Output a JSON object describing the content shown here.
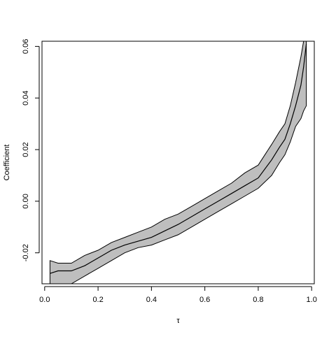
{
  "chart_data": {
    "type": "area",
    "xlabel": "τ",
    "ylabel": "Coefficient",
    "xlim": [
      -0.01,
      1.01
    ],
    "ylim": [
      -0.032,
      0.062
    ],
    "x_ticks": [
      "0.0",
      "0.2",
      "0.4",
      "0.6",
      "0.8",
      "1.0"
    ],
    "y_ticks": [
      "-0.02",
      "0.00",
      "0.02",
      "0.04",
      "0.06"
    ],
    "grid": false,
    "band_color": "#bebebe",
    "line_color": "#000000",
    "series": [
      {
        "role": "estimate",
        "x": [
          0.02,
          0.05,
          0.1,
          0.15,
          0.2,
          0.25,
          0.3,
          0.35,
          0.4,
          0.45,
          0.5,
          0.55,
          0.6,
          0.65,
          0.7,
          0.75,
          0.8,
          0.85,
          0.88,
          0.9,
          0.92,
          0.94,
          0.96,
          0.97,
          0.98
        ],
        "values": [
          -0.028,
          -0.027,
          -0.027,
          -0.025,
          -0.022,
          -0.019,
          -0.017,
          -0.0155,
          -0.014,
          -0.0115,
          -0.009,
          -0.006,
          -0.003,
          0.0,
          0.003,
          0.006,
          0.009,
          0.016,
          0.021,
          0.024,
          0.03,
          0.037,
          0.045,
          0.052,
          0.061
        ]
      },
      {
        "role": "upper",
        "x": [
          0.02,
          0.05,
          0.1,
          0.15,
          0.2,
          0.25,
          0.3,
          0.35,
          0.4,
          0.45,
          0.5,
          0.55,
          0.6,
          0.65,
          0.7,
          0.75,
          0.8,
          0.85,
          0.88,
          0.9,
          0.92,
          0.94,
          0.96,
          0.97,
          0.98
        ],
        "values": [
          -0.023,
          -0.024,
          -0.024,
          -0.021,
          -0.019,
          -0.016,
          -0.014,
          -0.012,
          -0.01,
          -0.007,
          -0.005,
          -0.002,
          0.001,
          0.004,
          0.007,
          0.011,
          0.014,
          0.022,
          0.027,
          0.03,
          0.037,
          0.046,
          0.056,
          0.062,
          0.062
        ]
      },
      {
        "role": "lower",
        "x": [
          0.02,
          0.05,
          0.1,
          0.15,
          0.2,
          0.25,
          0.3,
          0.35,
          0.4,
          0.45,
          0.5,
          0.55,
          0.6,
          0.65,
          0.7,
          0.75,
          0.8,
          0.85,
          0.88,
          0.9,
          0.92,
          0.94,
          0.96,
          0.97,
          0.98
        ],
        "values": [
          -0.032,
          -0.032,
          -0.032,
          -0.029,
          -0.026,
          -0.023,
          -0.02,
          -0.018,
          -0.017,
          -0.015,
          -0.013,
          -0.01,
          -0.007,
          -0.004,
          -0.001,
          0.002,
          0.005,
          0.01,
          0.015,
          0.018,
          0.023,
          0.029,
          0.032,
          0.035,
          0.037
        ]
      }
    ]
  }
}
